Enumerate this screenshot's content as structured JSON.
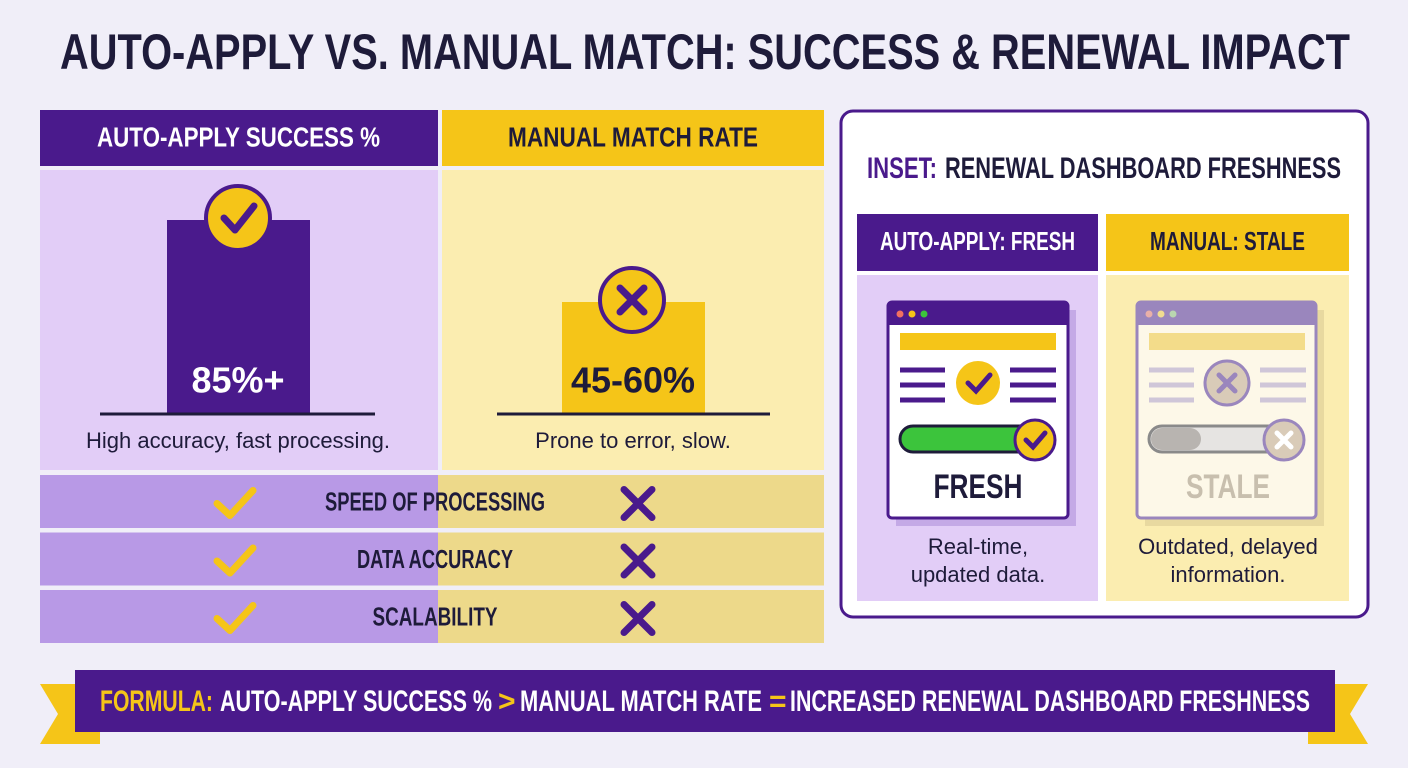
{
  "title": "AUTO-APPLY VS. MANUAL MATCH: SUCCESS & RENEWAL IMPACT",
  "comparison": {
    "columns": [
      {
        "header": "AUTO-APPLY SUCCESS %",
        "value": "85%+",
        "caption": "High accuracy, fast processing."
      },
      {
        "header": "MANUAL MATCH RATE",
        "value": "45-60%",
        "caption": "Prone to error, slow."
      }
    ],
    "criteria": [
      "SPEED OF PROCESSING",
      "DATA ACCURACY",
      "SCALABILITY"
    ]
  },
  "inset": {
    "label": "INSET:",
    "title": "RENEWAL DASHBOARD FRESHNESS",
    "panels": [
      {
        "header": "AUTO-APPLY: FRESH",
        "status": "FRESH",
        "caption": [
          "Real-time,",
          "updated data."
        ]
      },
      {
        "header": "MANUAL: STALE",
        "status": "STALE",
        "caption": [
          "Outdated, delayed",
          "information."
        ]
      }
    ]
  },
  "formula": [
    "FORMULA:",
    "AUTO-APPLY SUCCESS %",
    ">",
    "MANUAL MATCH RATE",
    "=",
    "INCREASED RENEWAL DASHBOARD FRESHNESS"
  ]
}
